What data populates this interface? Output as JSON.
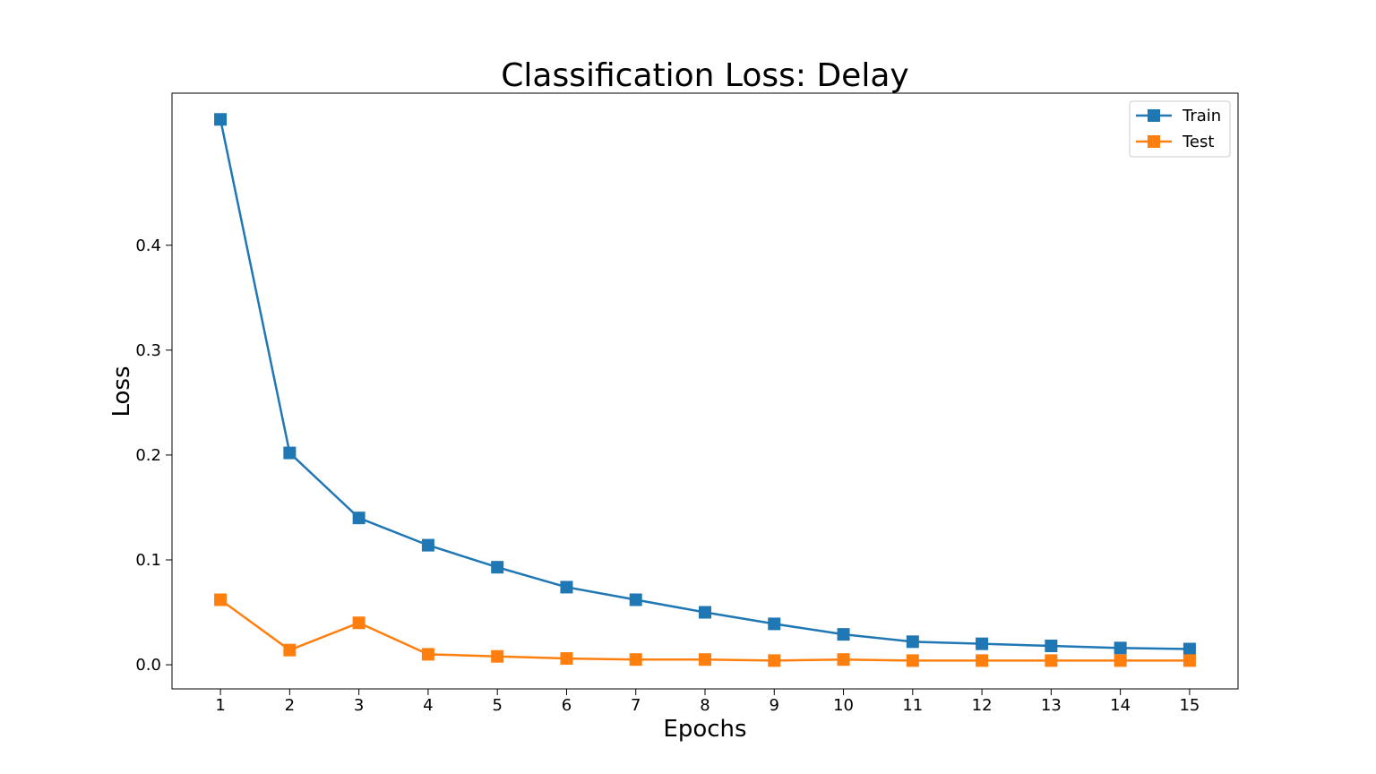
{
  "chart_data": {
    "type": "line",
    "title": "Classification Loss: Delay",
    "xlabel": "Epochs",
    "ylabel": "Loss",
    "x": [
      1,
      2,
      3,
      4,
      5,
      6,
      7,
      8,
      9,
      10,
      11,
      12,
      13,
      14,
      15
    ],
    "x_ticks": [
      "1",
      "2",
      "3",
      "4",
      "5",
      "6",
      "7",
      "8",
      "9",
      "10",
      "11",
      "12",
      "13",
      "14",
      "15"
    ],
    "y_ticks": [
      {
        "value": 0.0,
        "label": "0.0"
      },
      {
        "value": 0.1,
        "label": "0.1"
      },
      {
        "value": 0.2,
        "label": "0.2"
      },
      {
        "value": 0.3,
        "label": "0.3"
      },
      {
        "value": 0.4,
        "label": "0.4"
      }
    ],
    "xlim": [
      0.3,
      15.7
    ],
    "ylim": [
      -0.023,
      0.545
    ],
    "grid": false,
    "legend": "top-right",
    "marker": "square",
    "series": [
      {
        "name": "Train",
        "color": "#1f77b4",
        "values": [
          0.52,
          0.202,
          0.14,
          0.114,
          0.093,
          0.074,
          0.062,
          0.05,
          0.039,
          0.029,
          0.022,
          0.02,
          0.018,
          0.016,
          0.015
        ]
      },
      {
        "name": "Test",
        "color": "#ff7f0e",
        "values": [
          0.062,
          0.014,
          0.04,
          0.01,
          0.008,
          0.006,
          0.005,
          0.005,
          0.004,
          0.005,
          0.004,
          0.004,
          0.004,
          0.004,
          0.004
        ]
      }
    ]
  }
}
